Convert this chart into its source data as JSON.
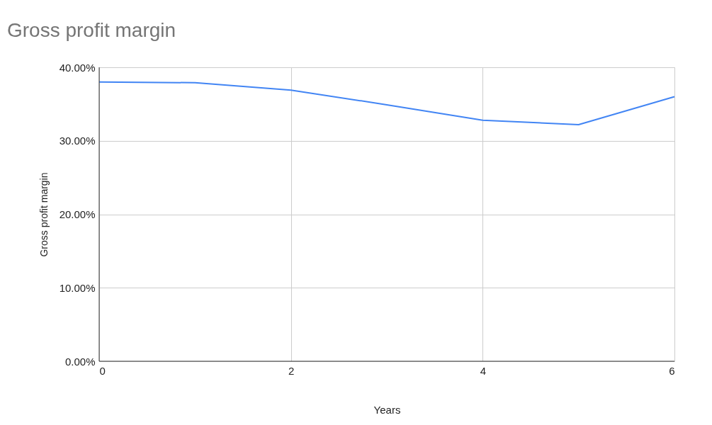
{
  "chart_data": {
    "type": "line",
    "title": "Gross profit margin",
    "xlabel": "Years",
    "ylabel": "Gross profit margin",
    "x": [
      0,
      1,
      2,
      3,
      4,
      5,
      6
    ],
    "series": [
      {
        "color": "#4285f4",
        "values": [
          38.0,
          37.9,
          36.9,
          34.9,
          32.8,
          32.2,
          36.0
        ]
      }
    ],
    "xlim": [
      0,
      6
    ],
    "xticks": [
      0,
      2,
      4,
      6
    ],
    "ylim": [
      0,
      40
    ],
    "yticks": [
      {
        "value": 0,
        "label": "0.00%"
      },
      {
        "value": 10,
        "label": "10.00%"
      },
      {
        "value": 20,
        "label": "20.00%"
      },
      {
        "value": 30,
        "label": "30.00%"
      },
      {
        "value": 40,
        "label": "40.00%"
      }
    ],
    "grid": true,
    "marker": "none",
    "line_style": "solid"
  }
}
